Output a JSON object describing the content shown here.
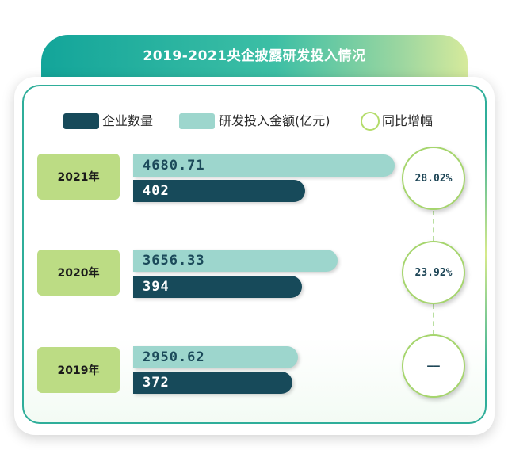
{
  "title": "2019-2021央企披露研发投入情况",
  "legend": {
    "count_label": "企业数量",
    "invest_label": "研发投入金额(亿元)",
    "growth_label": "同比增幅"
  },
  "colors": {
    "count_bar": "#174a5a",
    "invest_bar": "#9dd6cd",
    "year_box": "#bcdc84",
    "title_gradient_start": "#13a59a",
    "title_gradient_end": "#d6ea9c",
    "circle_border": "#a5d56c"
  },
  "chart_data": {
    "type": "bar",
    "orientation": "horizontal",
    "title": "2019-2021央企披露研发投入情况",
    "categories": [
      "2021年",
      "2020年",
      "2019年"
    ],
    "series": [
      {
        "name": "研发投入金额(亿元)",
        "values": [
          "4680.71",
          "3656.33",
          "2950.62"
        ]
      },
      {
        "name": "企业数量",
        "values": [
          "402",
          "394",
          "372"
        ]
      }
    ],
    "growth": {
      "name": "同比增幅",
      "values": [
        "28.02%",
        "23.92%",
        "——"
      ]
    },
    "legend_position": "top"
  }
}
